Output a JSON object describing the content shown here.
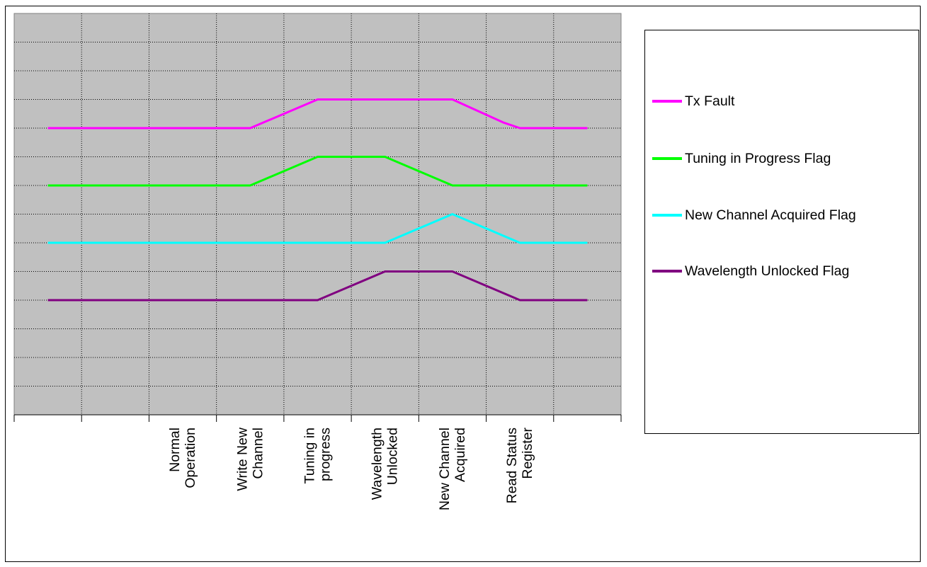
{
  "chart_data": {
    "type": "line",
    "title": "",
    "xlabel": "",
    "ylabel": "",
    "categories": [
      "",
      "",
      "Normal Operation",
      "Write New Channel",
      "Tuning in progress",
      "Wavelength Unlocked",
      "New Channel Acquired",
      "Read Status Register",
      ""
    ],
    "category_lines": [
      [],
      [],
      [
        "Normal",
        "Operation"
      ],
      [
        "Write New",
        "Channel"
      ],
      [
        "Tuning in",
        "progress"
      ],
      [
        "Wavelength",
        "Unlocked"
      ],
      [
        "New Channel",
        "Acquired"
      ],
      [
        "Read Status",
        "Register"
      ],
      []
    ],
    "ylim": [
      0,
      14
    ],
    "grid": true,
    "legend_position": "right",
    "plot_background": "#c0c0c0",
    "series": [
      {
        "name": "Tx Fault",
        "color": "#ff00ff",
        "points": [
          [
            0.5,
            10
          ],
          [
            3.5,
            10
          ],
          [
            4.5,
            11
          ],
          [
            6.5,
            11
          ],
          [
            7.25,
            10.2
          ],
          [
            7.5,
            10
          ],
          [
            8.5,
            10
          ]
        ]
      },
      {
        "name": "Tuning in Progress Flag",
        "color": "#00ff00",
        "points": [
          [
            0.5,
            8
          ],
          [
            3.5,
            8
          ],
          [
            4.5,
            9
          ],
          [
            5.5,
            9
          ],
          [
            6.5,
            8
          ],
          [
            8.5,
            8
          ]
        ]
      },
      {
        "name": "New Channel Acquired Flag",
        "color": "#00ffff",
        "points": [
          [
            0.5,
            6
          ],
          [
            5.5,
            6
          ],
          [
            6.5,
            7
          ],
          [
            7.5,
            6
          ],
          [
            8.5,
            6
          ]
        ]
      },
      {
        "name": "Wavelength Unlocked Flag",
        "color": "#800080",
        "points": [
          [
            0.5,
            4
          ],
          [
            4.5,
            4
          ],
          [
            5.5,
            5
          ],
          [
            6.5,
            5
          ],
          [
            7.5,
            4
          ],
          [
            8.5,
            4
          ]
        ]
      }
    ]
  }
}
